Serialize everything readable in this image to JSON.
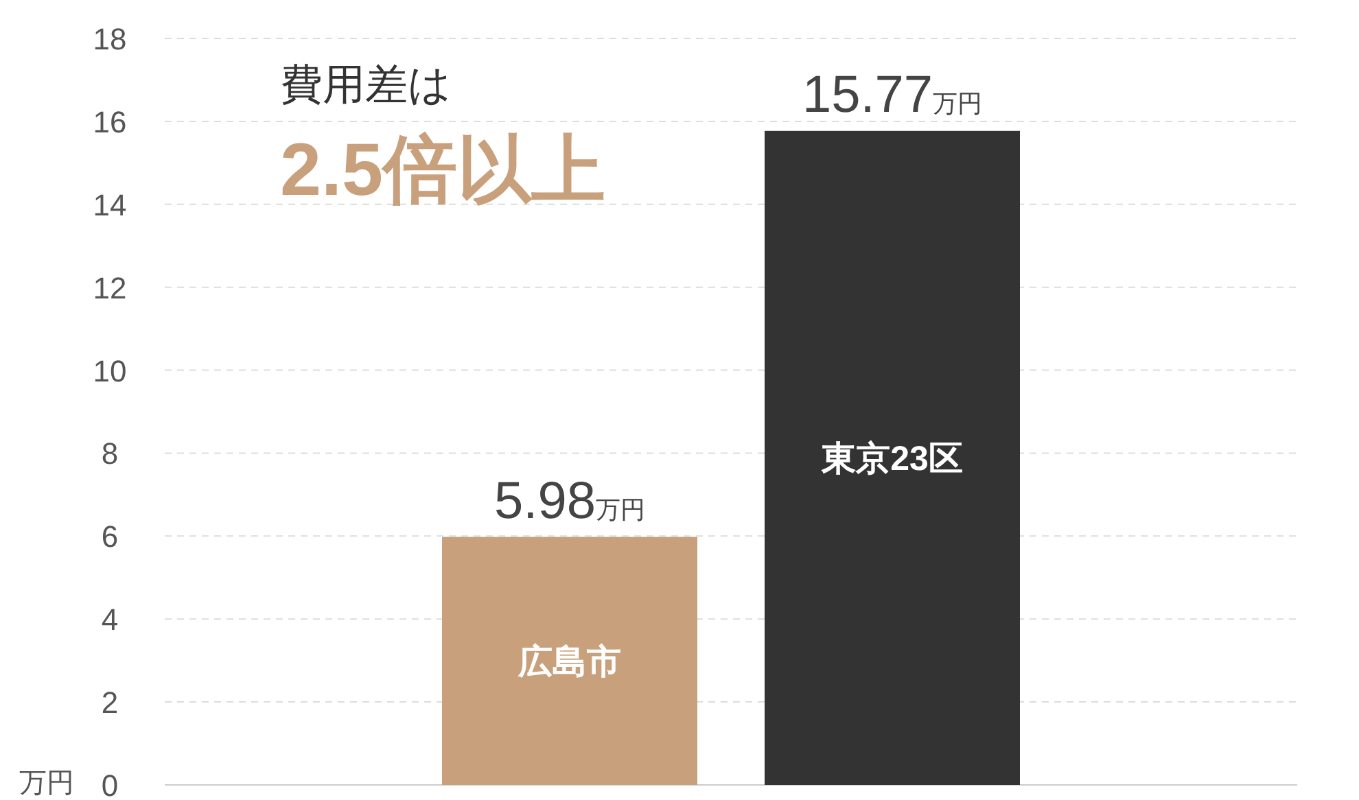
{
  "chart_data": {
    "type": "bar",
    "categories": [
      "広島市",
      "東京23区"
    ],
    "values": [
      5.98,
      15.77
    ],
    "colors": [
      "#c8a07c",
      "#333333"
    ],
    "value_labels": [
      "5.98万円",
      "15.77万円"
    ],
    "ylabel": "万円",
    "ylim": [
      0,
      18
    ],
    "yticks": [
      0,
      2,
      4,
      6,
      8,
      10,
      12,
      14,
      16,
      18
    ],
    "grid": "y",
    "annotations": [
      "費用差は",
      "2.5倍以上"
    ]
  }
}
